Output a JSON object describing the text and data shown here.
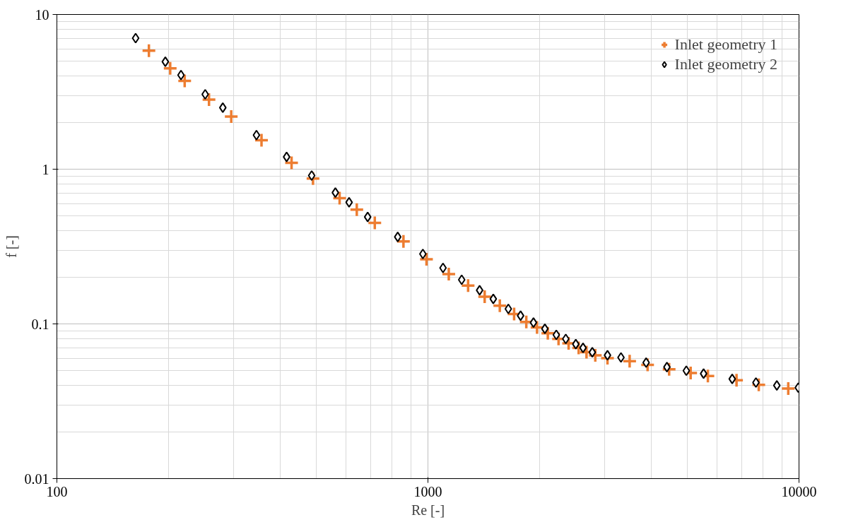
{
  "chart_data": {
    "type": "scatter",
    "xlabel": "Re [-]",
    "ylabel": "f [-]",
    "log": "xy",
    "xlim": [
      100,
      10000
    ],
    "ylim": [
      0.01,
      10
    ],
    "xticks": [
      100,
      1000,
      10000
    ],
    "yticks": [
      0.01,
      0.1,
      1,
      10
    ],
    "grid": true,
    "legend": "top right",
    "series": [
      {
        "name": "Inlet geometry 1",
        "color": "#ed7d31",
        "marker": "cross",
        "x": [
          177,
          202,
          221,
          257,
          295,
          356,
          429,
          490,
          578,
          643,
          719,
          859,
          991,
          1138,
          1283,
          1422,
          1562,
          1707,
          1841,
          1968,
          2104,
          2249,
          2394,
          2548,
          2675,
          2825,
          3047,
          3496,
          3908,
          4467,
          5105,
          5681,
          6787,
          7791,
          9355
        ],
        "values": [
          5.83,
          4.48,
          3.72,
          2.82,
          2.19,
          1.54,
          1.1,
          0.87,
          0.65,
          0.548,
          0.45,
          0.341,
          0.262,
          0.21,
          0.177,
          0.15,
          0.131,
          0.116,
          0.103,
          0.095,
          0.087,
          0.08,
          0.0748,
          0.07,
          0.0656,
          0.0627,
          0.06,
          0.0574,
          0.0544,
          0.0509,
          0.0482,
          0.0461,
          0.0432,
          0.0404,
          0.0382
        ]
      },
      {
        "name": "Inlet geometry 2",
        "color": "#000000",
        "marker": "diamond",
        "x": [
          163,
          196,
          216,
          251,
          280,
          345,
          416,
          486,
          563,
          613,
          688,
          829,
          969,
          1098,
          1233,
          1378,
          1500,
          1647,
          1777,
          1925,
          2066,
          2218,
          2352,
          2503,
          2618,
          2773,
          3047,
          3313,
          3873,
          4406,
          4970,
          5532,
          6607,
          7655,
          8715,
          9955
        ],
        "values": [
          7.03,
          4.95,
          4.06,
          3.05,
          2.5,
          1.66,
          1.2,
          0.91,
          0.706,
          0.611,
          0.491,
          0.365,
          0.283,
          0.23,
          0.193,
          0.165,
          0.145,
          0.125,
          0.113,
          0.102,
          0.093,
          0.085,
          0.08,
          0.074,
          0.07,
          0.0656,
          0.0627,
          0.0607,
          0.0562,
          0.0526,
          0.0498,
          0.0477,
          0.0441,
          0.0418,
          0.04,
          0.0387
        ]
      }
    ]
  }
}
